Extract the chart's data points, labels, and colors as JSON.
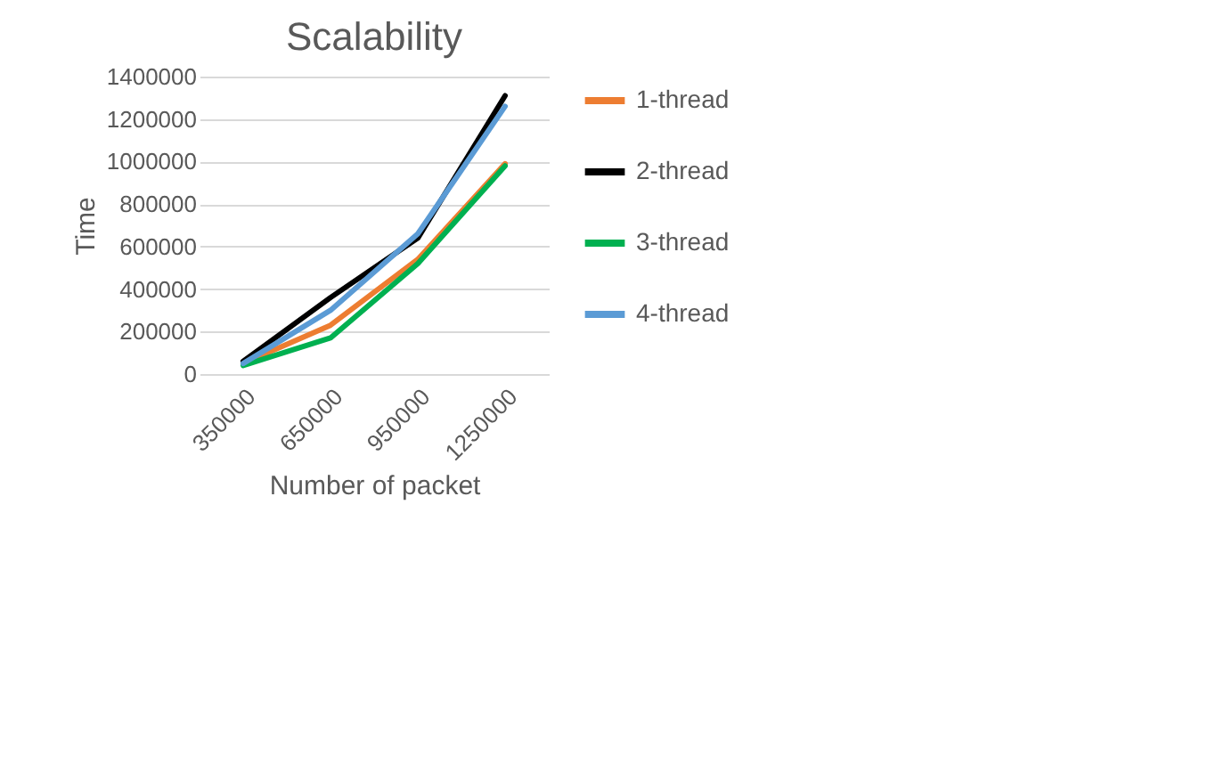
{
  "chart_data": {
    "type": "line",
    "title": "Scalability",
    "xlabel": "Number of packet",
    "ylabel": "Time",
    "categories": [
      "350000",
      "650000",
      "950000",
      "1250000"
    ],
    "series": [
      {
        "name": "1-thread",
        "color": "#ed7d31",
        "values": [
          50000,
          230000,
          540000,
          990000
        ]
      },
      {
        "name": "2-thread",
        "color": "#000000",
        "values": [
          60000,
          360000,
          640000,
          1310000
        ]
      },
      {
        "name": "3-thread",
        "color": "#00b050",
        "values": [
          40000,
          170000,
          520000,
          980000
        ]
      },
      {
        "name": "4-thread",
        "color": "#5b9bd5",
        "values": [
          50000,
          300000,
          660000,
          1260000
        ]
      }
    ],
    "ylim": [
      0,
      1400000
    ],
    "yticks": [
      0,
      200000,
      400000,
      600000,
      800000,
      1000000,
      1200000,
      1400000
    ],
    "grid": "y",
    "legend": "right",
    "marker": "none",
    "line_style": "solid"
  }
}
